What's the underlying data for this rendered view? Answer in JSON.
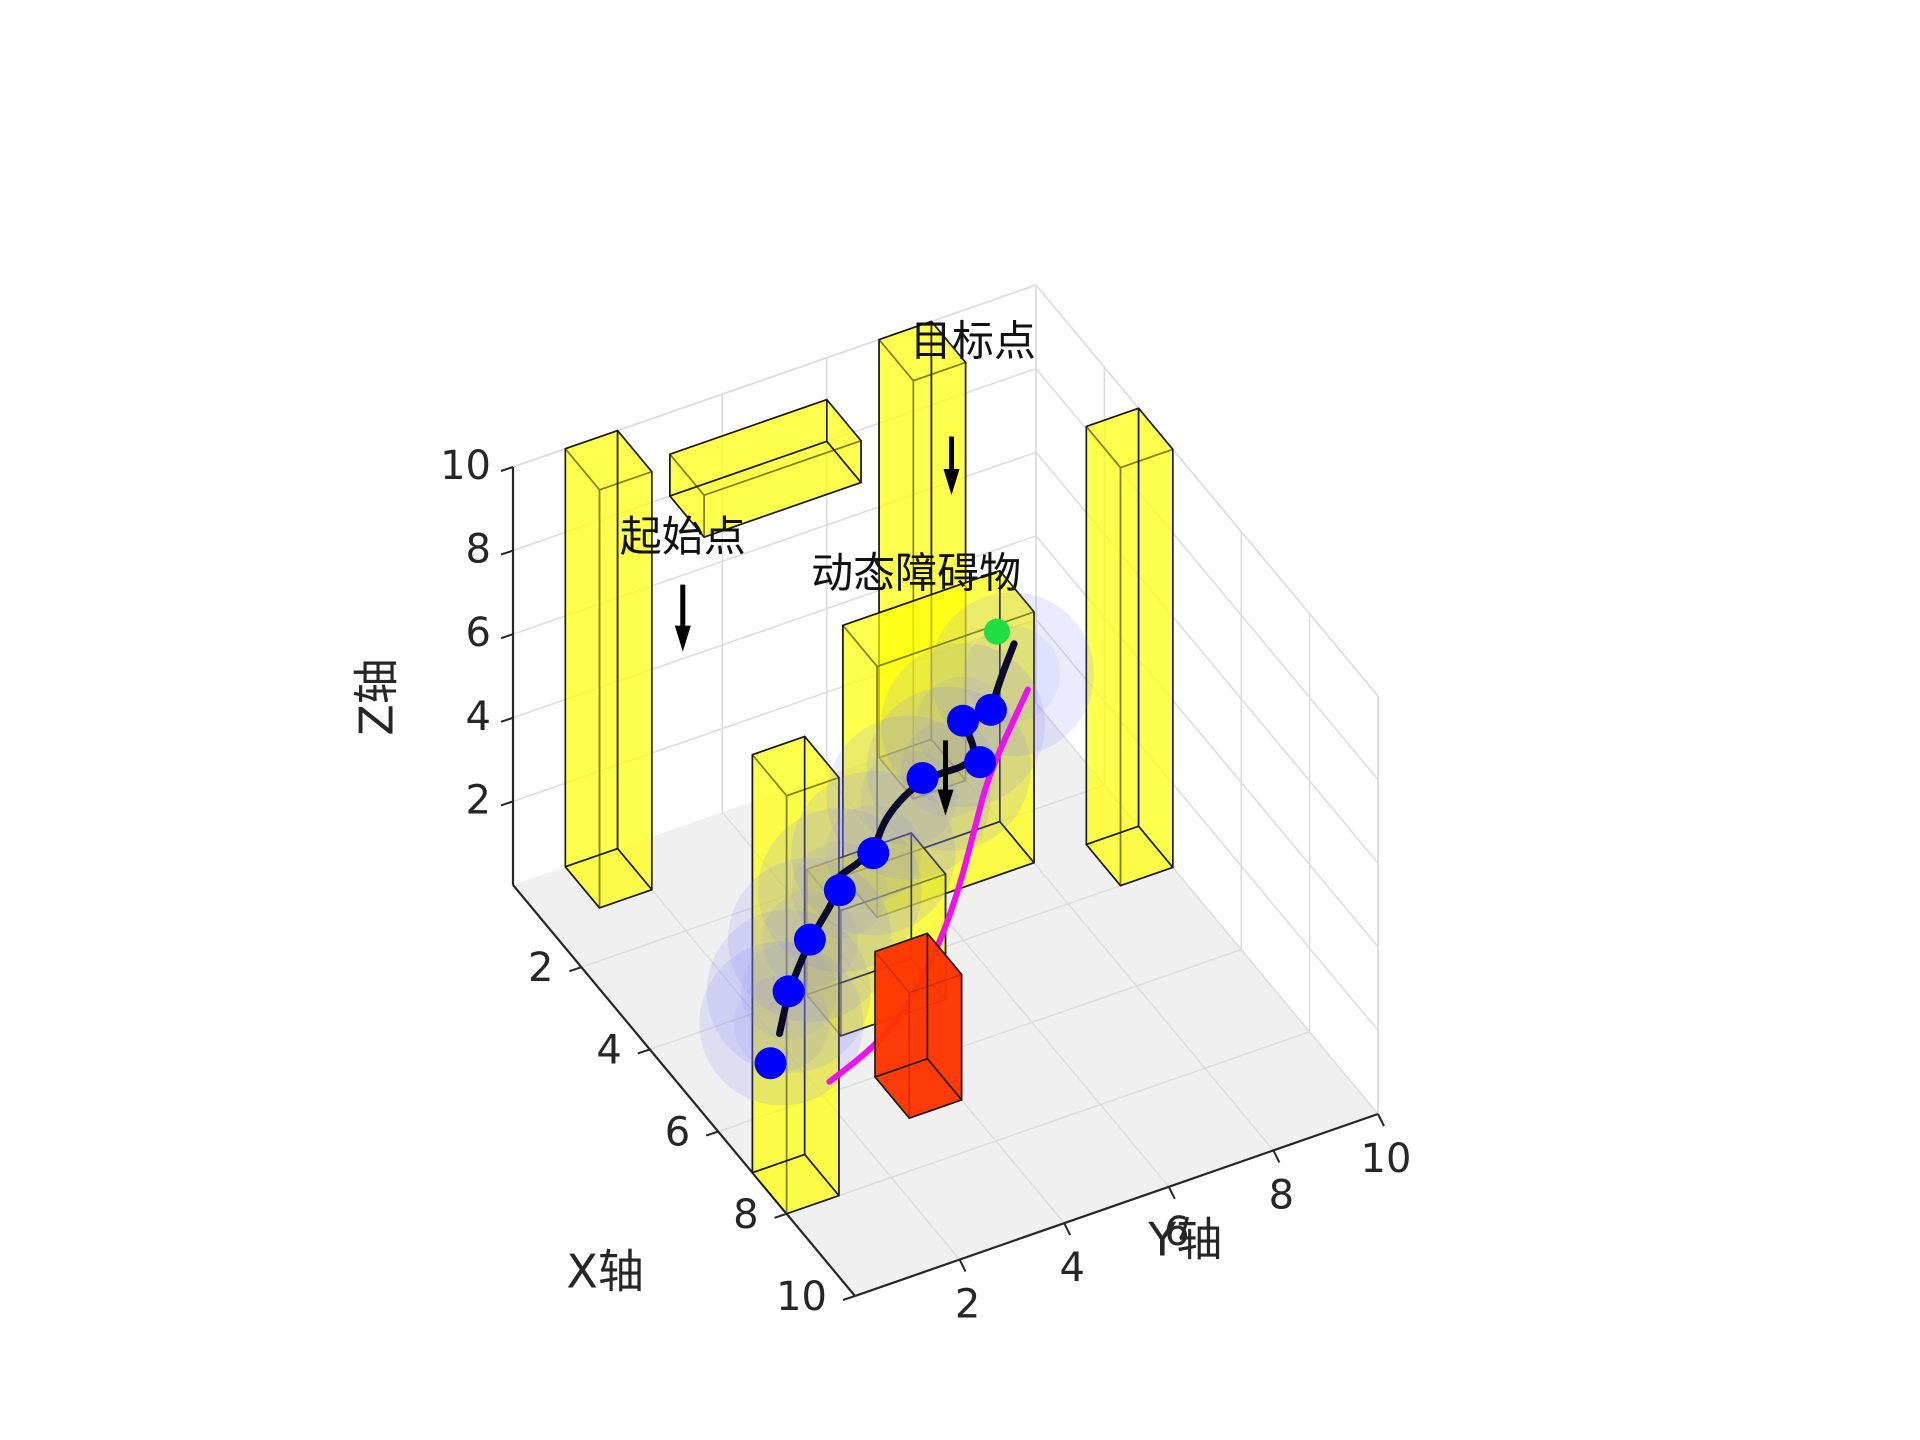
{
  "chart_data": {
    "type": "3d-scatter",
    "xlabel": "X轴",
    "ylabel": "Y轴",
    "zlabel": "Z轴",
    "xlim": [
      0,
      10
    ],
    "ylim": [
      0,
      10
    ],
    "zlim": [
      0,
      10
    ],
    "x_ticks": [
      "2",
      "4",
      "6",
      "8",
      "10"
    ],
    "y_ticks": [
      "2",
      "4",
      "6",
      "8",
      "10"
    ],
    "z_ticks": [
      "2",
      "4",
      "6",
      "8",
      "10"
    ],
    "grid": true,
    "annotations": [
      {
        "text": "起始点",
        "at": [
          1.6,
          2.2,
          8.6
        ],
        "arrow_from": [
          1.6,
          2.2,
          7.8
        ],
        "arrow_to": [
          1.6,
          2.2,
          6.2
        ]
      },
      {
        "text": "动态障碍物",
        "at": [
          2.0,
          6.4,
          6.3
        ],
        "arrow_from": [
          5.0,
          5.0,
          6.2
        ],
        "arrow_to": [
          5.0,
          5.0,
          4.4
        ]
      },
      {
        "text": "目标点",
        "at": [
          0.6,
          8.4,
          9.6
        ],
        "arrow_from": [
          1.2,
          7.6,
          8.6
        ],
        "arrow_to": [
          1.2,
          7.6,
          7.2
        ]
      }
    ],
    "static_obstacles": [
      {
        "name": "column-1",
        "x": [
          0,
          1
        ],
        "y": [
          1,
          2
        ],
        "z": [
          0,
          10
        ]
      },
      {
        "name": "column-2",
        "x": [
          7,
          8
        ],
        "y": [
          0,
          1
        ],
        "z": [
          0,
          10
        ]
      },
      {
        "name": "column-3",
        "x": [
          0,
          1
        ],
        "y": [
          7,
          8
        ],
        "z": [
          0,
          10
        ]
      },
      {
        "name": "column-4",
        "x": [
          3,
          4
        ],
        "y": [
          9,
          10
        ],
        "z": [
          0,
          10
        ]
      },
      {
        "name": "wall-block",
        "x": [
          2,
          3
        ],
        "y": [
          5,
          8
        ],
        "z": [
          0,
          6
        ]
      },
      {
        "name": "low-block",
        "x": [
          4,
          5
        ],
        "y": [
          3,
          5
        ],
        "z": [
          0,
          3
        ]
      },
      {
        "name": "overhead-block",
        "x": [
          0,
          1
        ],
        "y": [
          3,
          6
        ],
        "z": [
          8,
          9
        ]
      }
    ],
    "dynamic_obstacle": {
      "color": "#ff3300",
      "x": [
        6,
        7
      ],
      "y": [
        3,
        4
      ],
      "z": [
        0,
        3
      ]
    },
    "series": [
      {
        "name": "",
        "color": "#0a0a2a",
        "x": [
          5.5,
          5.0,
          4.4,
          3.9,
          3.6,
          3.5,
          3.1,
          2.8,
          2.8,
          2.3,
          2.2,
          1.7,
          1.5
        ],
        "y": [
          1.5,
          2.0,
          2.8,
          3.7,
          3.7,
          4.6,
          5.1,
          6.0,
          7.1,
          7.1,
          7.7,
          8.2,
          8.6
        ],
        "z": [
          1.2,
          1.5,
          1.8,
          2.1,
          2.0,
          2.2,
          2.5,
          2.7,
          2.6,
          3.1,
          3.0,
          3.0,
          3.5
        ]
      },
      {
        "name": "",
        "color": "#ee11ee",
        "x": [
          6.5,
          6.3,
          6.0,
          5.5,
          4.9,
          4.2,
          3.4,
          2.6,
          1.9
        ],
        "y": [
          1.8,
          2.6,
          3.4,
          4.2,
          5.0,
          5.8,
          6.6,
          7.4,
          8.6
        ],
        "z": [
          0.9,
          1.0,
          1.1,
          1.25,
          1.4,
          1.6,
          1.8,
          2.0,
          2.8
        ]
      }
    ],
    "waypoints": {
      "color": "#0000ff",
      "x": [
        6.0,
        5.0,
        4.4,
        3.9,
        3.5,
        2.8,
        2.8,
        2.3,
        2.2
      ],
      "y": [
        1.0,
        2.0,
        2.8,
        3.7,
        4.6,
        6.0,
        7.1,
        7.1,
        7.7
      ],
      "z": [
        1.2,
        1.5,
        1.8,
        2.1,
        2.2,
        2.7,
        2.6,
        3.1,
        3.0
      ]
    },
    "target_point": {
      "color": "#22dd44",
      "x": 1.0,
      "y": 8.6,
      "z": 3.3
    },
    "safety_spheres": {
      "color": "#8080ff",
      "centers": [
        [
          5.4,
          1.6,
          1.3
        ],
        [
          5.0,
          2.0,
          1.5
        ],
        [
          4.4,
          2.8,
          1.8
        ],
        [
          3.9,
          3.7,
          2.1
        ],
        [
          3.5,
          4.6,
          2.2
        ],
        [
          3.0,
          5.6,
          2.6
        ],
        [
          2.8,
          6.5,
          2.7
        ],
        [
          2.3,
          7.1,
          3.0
        ],
        [
          1.9,
          8.3,
          3.3
        ]
      ]
    }
  }
}
